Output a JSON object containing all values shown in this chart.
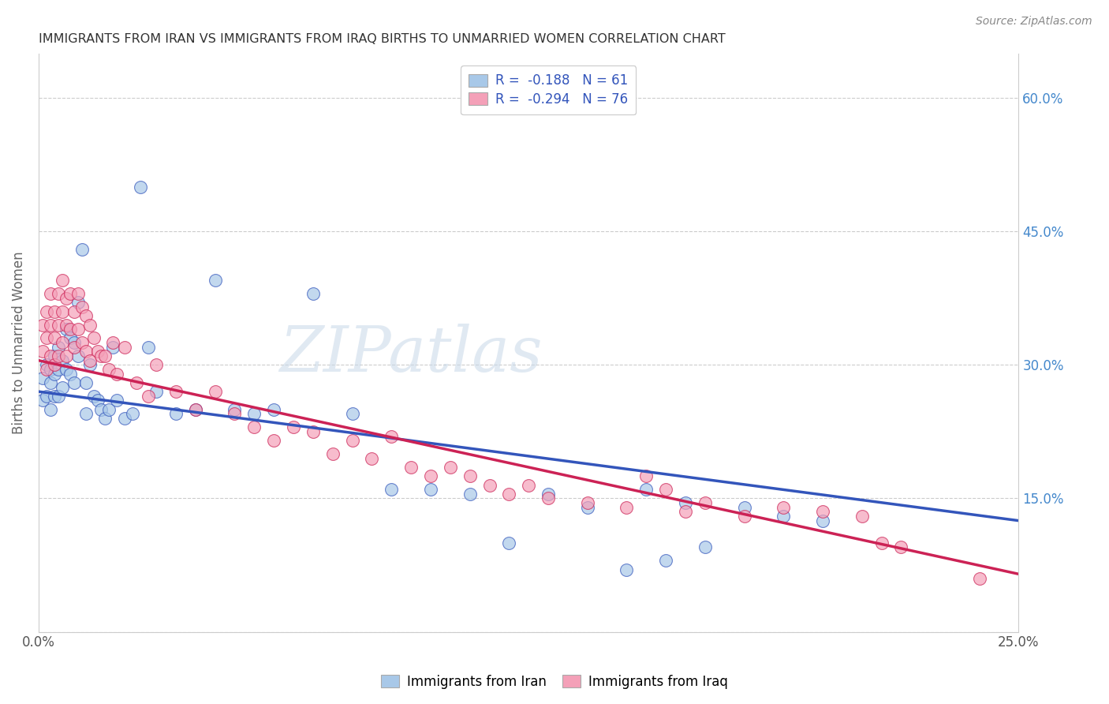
{
  "title": "IMMIGRANTS FROM IRAN VS IMMIGRANTS FROM IRAQ BIRTHS TO UNMARRIED WOMEN CORRELATION CHART",
  "source": "Source: ZipAtlas.com",
  "ylabel": "Births to Unmarried Women",
  "right_ytick_labels": [
    "60.0%",
    "45.0%",
    "30.0%",
    "15.0%"
  ],
  "right_ytick_values": [
    0.6,
    0.45,
    0.3,
    0.15
  ],
  "xlim": [
    0.0,
    0.25
  ],
  "ylim": [
    0.0,
    0.65
  ],
  "iran_color": "#a8c8e8",
  "iraq_color": "#f4a0b8",
  "iran_line_color": "#3355bb",
  "iraq_line_color": "#cc2255",
  "iran_R": "-0.188",
  "iran_N": "61",
  "iraq_R": "-0.294",
  "iraq_N": "76",
  "legend_label_iran": "Immigrants from Iran",
  "legend_label_iraq": "Immigrants from Iraq",
  "background_color": "#ffffff",
  "grid_color": "#cccccc",
  "iran_scatter_x": [
    0.001,
    0.001,
    0.002,
    0.002,
    0.003,
    0.003,
    0.003,
    0.004,
    0.004,
    0.004,
    0.005,
    0.005,
    0.005,
    0.006,
    0.006,
    0.007,
    0.007,
    0.008,
    0.008,
    0.009,
    0.009,
    0.01,
    0.01,
    0.011,
    0.012,
    0.012,
    0.013,
    0.014,
    0.015,
    0.016,
    0.017,
    0.018,
    0.019,
    0.02,
    0.022,
    0.024,
    0.026,
    0.028,
    0.03,
    0.035,
    0.04,
    0.045,
    0.05,
    0.055,
    0.06,
    0.07,
    0.08,
    0.09,
    0.1,
    0.11,
    0.12,
    0.13,
    0.14,
    0.15,
    0.155,
    0.16,
    0.165,
    0.17,
    0.18,
    0.19,
    0.2
  ],
  "iran_scatter_y": [
    0.285,
    0.26,
    0.3,
    0.265,
    0.295,
    0.28,
    0.25,
    0.31,
    0.29,
    0.265,
    0.32,
    0.295,
    0.265,
    0.305,
    0.275,
    0.34,
    0.295,
    0.33,
    0.29,
    0.325,
    0.28,
    0.37,
    0.31,
    0.43,
    0.28,
    0.245,
    0.3,
    0.265,
    0.26,
    0.25,
    0.24,
    0.25,
    0.32,
    0.26,
    0.24,
    0.245,
    0.5,
    0.32,
    0.27,
    0.245,
    0.25,
    0.395,
    0.25,
    0.245,
    0.25,
    0.38,
    0.245,
    0.16,
    0.16,
    0.155,
    0.1,
    0.155,
    0.14,
    0.07,
    0.16,
    0.08,
    0.145,
    0.095,
    0.14,
    0.13,
    0.125
  ],
  "iraq_scatter_x": [
    0.001,
    0.001,
    0.002,
    0.002,
    0.002,
    0.003,
    0.003,
    0.003,
    0.004,
    0.004,
    0.004,
    0.005,
    0.005,
    0.005,
    0.006,
    0.006,
    0.006,
    0.007,
    0.007,
    0.007,
    0.008,
    0.008,
    0.009,
    0.009,
    0.01,
    0.01,
    0.011,
    0.011,
    0.012,
    0.012,
    0.013,
    0.013,
    0.014,
    0.015,
    0.016,
    0.017,
    0.018,
    0.019,
    0.02,
    0.022,
    0.025,
    0.028,
    0.03,
    0.035,
    0.04,
    0.045,
    0.05,
    0.055,
    0.06,
    0.065,
    0.07,
    0.075,
    0.08,
    0.085,
    0.09,
    0.095,
    0.1,
    0.105,
    0.11,
    0.115,
    0.12,
    0.125,
    0.13,
    0.14,
    0.15,
    0.155,
    0.16,
    0.165,
    0.17,
    0.18,
    0.19,
    0.2,
    0.21,
    0.215,
    0.22,
    0.24
  ],
  "iraq_scatter_y": [
    0.345,
    0.315,
    0.36,
    0.33,
    0.295,
    0.38,
    0.345,
    0.31,
    0.36,
    0.33,
    0.3,
    0.38,
    0.345,
    0.31,
    0.395,
    0.36,
    0.325,
    0.375,
    0.345,
    0.31,
    0.38,
    0.34,
    0.36,
    0.32,
    0.38,
    0.34,
    0.365,
    0.325,
    0.355,
    0.315,
    0.345,
    0.305,
    0.33,
    0.315,
    0.31,
    0.31,
    0.295,
    0.325,
    0.29,
    0.32,
    0.28,
    0.265,
    0.3,
    0.27,
    0.25,
    0.27,
    0.245,
    0.23,
    0.215,
    0.23,
    0.225,
    0.2,
    0.215,
    0.195,
    0.22,
    0.185,
    0.175,
    0.185,
    0.175,
    0.165,
    0.155,
    0.165,
    0.15,
    0.145,
    0.14,
    0.175,
    0.16,
    0.135,
    0.145,
    0.13,
    0.14,
    0.135,
    0.13,
    0.1,
    0.095,
    0.06
  ],
  "watermark_text": "ZIPatlas",
  "iran_line_x": [
    0.0,
    0.25
  ],
  "iran_line_y": [
    0.27,
    0.125
  ],
  "iraq_line_x": [
    0.0,
    0.25
  ],
  "iraq_line_y": [
    0.305,
    0.065
  ]
}
